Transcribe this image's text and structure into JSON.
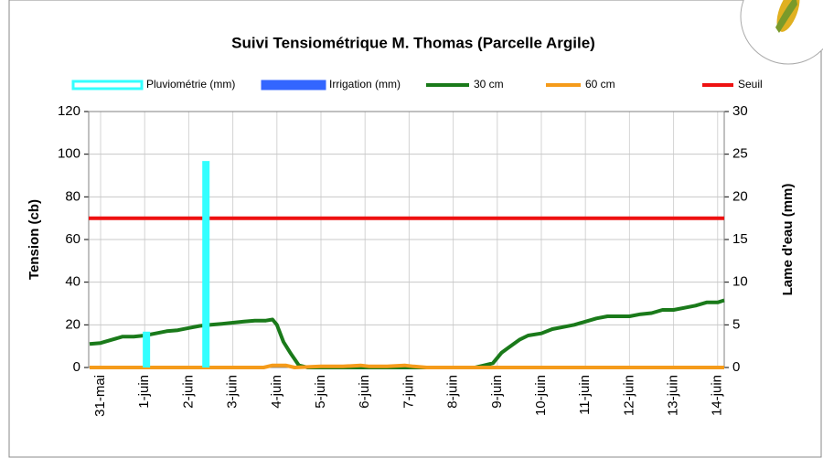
{
  "chart_data": {
    "type": "line",
    "title": "Suivi Tensiométrique M. Thomas (Parcelle Argile)",
    "ylabel": "Tension (cb)",
    "y2label": "Lame d'eau (mm)",
    "xlim": [
      -0.27,
      14.15
    ],
    "xticks": [
      {
        "value": 0,
        "label": "31-mai"
      },
      {
        "value": 1,
        "label": "1-juin"
      },
      {
        "value": 2,
        "label": "2-juin"
      },
      {
        "value": 3,
        "label": "3-juin"
      },
      {
        "value": 4,
        "label": "4-juin"
      },
      {
        "value": 5,
        "label": "5-juin"
      },
      {
        "value": 6,
        "label": "6-juin"
      },
      {
        "value": 7,
        "label": "7-juin"
      },
      {
        "value": 8,
        "label": "8-juin"
      },
      {
        "value": 9,
        "label": "9-juin"
      },
      {
        "value": 10,
        "label": "10-juin"
      },
      {
        "value": 11,
        "label": "11-juin"
      },
      {
        "value": 12,
        "label": "12-juin"
      },
      {
        "value": 13,
        "label": "13-juin"
      },
      {
        "value": 14,
        "label": "14-juin"
      }
    ],
    "ylim": [
      0,
      120
    ],
    "yticks": [
      0,
      20,
      40,
      60,
      80,
      100,
      120
    ],
    "y2lim": [
      0,
      30
    ],
    "y2ticks": [
      0,
      5,
      10,
      15,
      20,
      25,
      30
    ],
    "grid": true,
    "legend": "top",
    "series": [
      {
        "name": "Pluviométrie (mm)",
        "type": "bar",
        "axis": "y2",
        "color": "#33ffff",
        "x": [
          1.04,
          2.39
        ],
        "values": [
          4.2,
          24.2
        ]
      },
      {
        "name": "Irrigation (mm)",
        "type": "bar",
        "axis": "y2",
        "color": "#3366ff",
        "x": [],
        "values": []
      },
      {
        "name": "30 cm",
        "type": "line",
        "color": "#1a7a1a",
        "x": [
          -0.25,
          0,
          0.25,
          0.5,
          0.75,
          1,
          1.25,
          1.5,
          1.75,
          2,
          2.25,
          2.5,
          2.75,
          3,
          3.25,
          3.5,
          3.75,
          3.9,
          4,
          4.15,
          4.3,
          4.5,
          4.7,
          5,
          6,
          7,
          8,
          8.5,
          8.7,
          8.9,
          9.1,
          9.3,
          9.5,
          9.7,
          10,
          10.25,
          10.5,
          10.75,
          11,
          11.25,
          11.5,
          12,
          12.25,
          12.5,
          12.75,
          13,
          13.25,
          13.5,
          13.75,
          14,
          14.15
        ],
        "values": [
          11,
          11.5,
          13,
          14.5,
          14.5,
          15,
          16,
          17,
          17.5,
          18.5,
          19.5,
          20,
          20.5,
          21,
          21.5,
          22,
          22,
          22.5,
          20,
          12,
          7,
          1,
          0,
          0,
          0,
          0,
          0,
          0,
          1,
          2,
          7,
          10,
          13,
          15,
          16,
          18,
          19,
          20,
          21.5,
          23,
          24,
          24,
          25,
          25.5,
          27,
          27,
          28,
          29,
          30.5,
          30.5,
          31.5
        ]
      },
      {
        "name": "60 cm",
        "type": "line",
        "color": "#f59b1a",
        "x": [
          -0.25,
          3.7,
          3.9,
          4.2,
          4.4,
          5,
          5.5,
          5.9,
          6.1,
          6.5,
          6.9,
          7.1,
          7.4,
          8,
          14.15
        ],
        "values": [
          0,
          0,
          1,
          1,
          0,
          0.5,
          0.5,
          1,
          0.5,
          0.5,
          1,
          0.5,
          0,
          0,
          0
        ]
      },
      {
        "name": "Seuil",
        "type": "line",
        "color": "#ee1111",
        "x": [
          -0.27,
          14.15
        ],
        "values": [
          70,
          70
        ]
      }
    ]
  }
}
